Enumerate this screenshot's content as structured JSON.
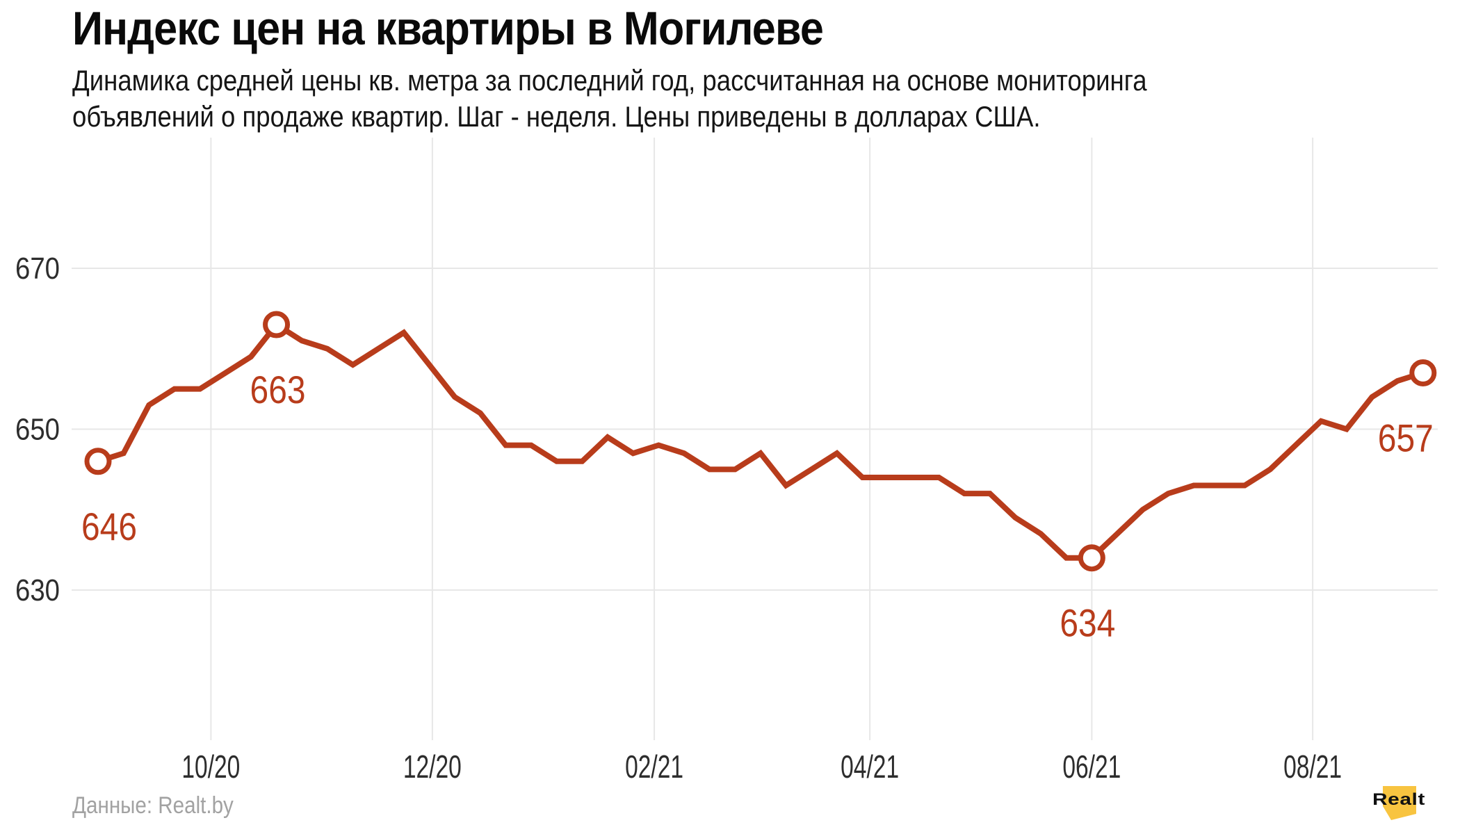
{
  "header": {
    "title": "Индекс цен на квартиры в Могилеве",
    "subtitle_lines": [
      "Динамика средней цены кв. метра за последний год, рассчитанная на основе мониторинга",
      "объявлений о продаже квартир. Шаг - неделя. Цены приведены в долларах США."
    ]
  },
  "chart_data": {
    "type": "line",
    "title": "Индекс цен на квартиры в Могилеве",
    "x_unit": "week",
    "x_tick_labels": [
      "10/20",
      "12/20",
      "02/21",
      "04/21",
      "06/21",
      "08/21"
    ],
    "x_tick_week_positions": [
      4.43,
      13.12,
      21.83,
      30.29,
      39.0,
      47.67
    ],
    "y_ticks": [
      670,
      650,
      630
    ],
    "ylim": [
      625,
      675
    ],
    "grid": true,
    "legend": false,
    "values": [
      646,
      647,
      653,
      655,
      655,
      657,
      659,
      663,
      661,
      660,
      658,
      660,
      662,
      658,
      654,
      652,
      648,
      648,
      646,
      646,
      649,
      647,
      648,
      647,
      645,
      645,
      647,
      643,
      645,
      647,
      644,
      644,
      644,
      644,
      642,
      642,
      639,
      637,
      634,
      634,
      637,
      640,
      642,
      643,
      643,
      643,
      645,
      648,
      651,
      650,
      654,
      656,
      657
    ],
    "annotated_points": [
      {
        "week": 0,
        "value": 646,
        "label": "646"
      },
      {
        "week": 7,
        "value": 663,
        "label": "663"
      },
      {
        "week": 39,
        "value": 634,
        "label": "634"
      },
      {
        "week": 52,
        "value": 657,
        "label": "657"
      }
    ]
  },
  "footer": {
    "source": "Данные: Realt.by",
    "logo_text": "Realt"
  },
  "colors": {
    "line": "#b83c1b",
    "point_label": "#b83c1b",
    "marker_fill": "#ffffff",
    "grid": "#e7e7e7",
    "axis_text": "#2d2d2d",
    "title_text": "#0a0a0a",
    "subtitle_text": "#151515",
    "source_text": "#a2a2a2",
    "logo_yellow": "#f8c440",
    "logo_text_color": "#111111",
    "background": "#ffffff"
  }
}
